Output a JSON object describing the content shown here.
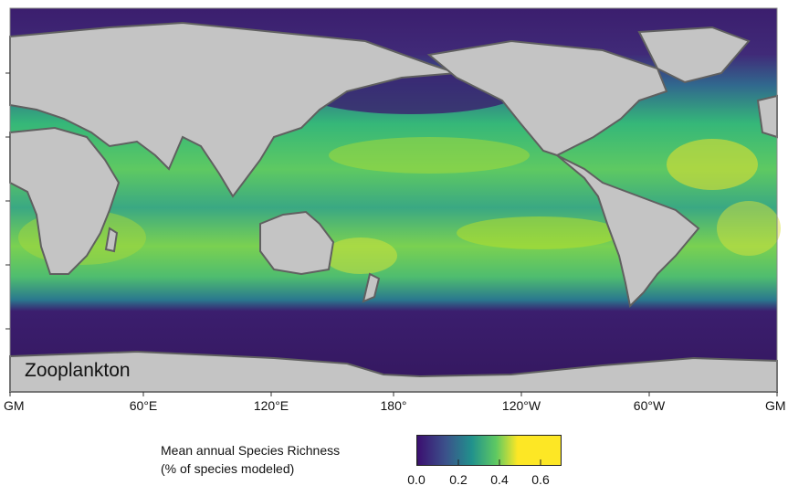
{
  "map": {
    "panel_label": "Zooplankton",
    "longitude_labels": [
      "GM",
      "60°E",
      "120°E",
      "180°",
      "120°W",
      "60°W",
      "GM"
    ]
  },
  "legend": {
    "title_line1": "Mean annual Species Richness",
    "title_line2": "(% of species modeled)",
    "ticks": [
      "0.0",
      "0.2",
      "0.4",
      "0.6"
    ],
    "colormap": [
      "#3b0f70",
      "#31688e",
      "#21918c",
      "#35b779",
      "#90d743",
      "#fde725"
    ]
  },
  "colors": {
    "land": "#c4c4c4",
    "shelf": "#606060",
    "low": "#3b1e6e",
    "high": "#fde725"
  }
}
